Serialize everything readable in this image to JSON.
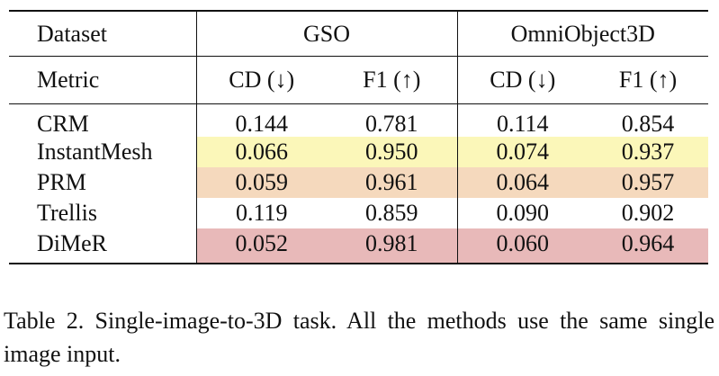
{
  "table": {
    "header_row1": {
      "label": "Dataset",
      "groups": [
        "GSO",
        "OmniObject3D"
      ]
    },
    "header_row2": {
      "label": "Metric",
      "metrics": [
        "CD (↓)",
        "F1 (↑)",
        "CD (↓)",
        "F1 (↑)"
      ]
    },
    "rows": [
      {
        "method": "CRM",
        "values": [
          "0.144",
          "0.781",
          "0.114",
          "0.854"
        ],
        "highlight": "none"
      },
      {
        "method": "InstantMesh",
        "values": [
          "0.066",
          "0.950",
          "0.074",
          "0.937"
        ],
        "highlight": "#fbf7b9"
      },
      {
        "method": "PRM",
        "values": [
          "0.059",
          "0.961",
          "0.064",
          "0.957"
        ],
        "highlight": "#f5d9bd"
      },
      {
        "method": "Trellis",
        "values": [
          "0.119",
          "0.859",
          "0.090",
          "0.902"
        ],
        "highlight": "none"
      },
      {
        "method": "DiMeR",
        "values": [
          "0.052",
          "0.981",
          "0.060",
          "0.964"
        ],
        "highlight": "#e8b9b9"
      }
    ]
  },
  "caption": "Table 2. Single-image-to-3D task. All the methods use the same single image input."
}
